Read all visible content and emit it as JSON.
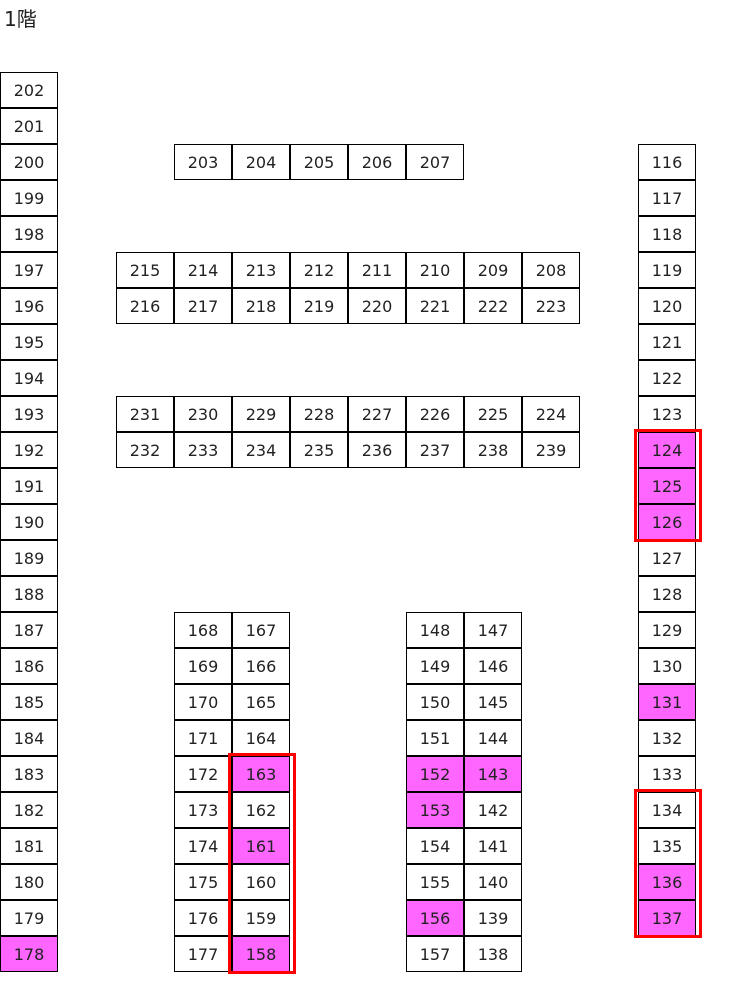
{
  "title": "1階",
  "highlight_color": "#ff66ff",
  "selection_color": "#ff0000",
  "blocks": {
    "left_column": [
      "202",
      "201",
      "200",
      "199",
      "198",
      "197",
      "196",
      "195",
      "194",
      "193",
      "192",
      "191",
      "190",
      "189",
      "188",
      "187",
      "186",
      "185",
      "184",
      "183",
      "182",
      "181",
      "180",
      "179",
      "178"
    ],
    "right_column": [
      "116",
      "117",
      "118",
      "119",
      "120",
      "121",
      "122",
      "123",
      "124",
      "125",
      "126",
      "127",
      "128",
      "129",
      "130",
      "131",
      "132",
      "133",
      "134",
      "135",
      "136",
      "137"
    ],
    "top_row": [
      "203",
      "204",
      "205",
      "206",
      "207"
    ],
    "mid_upper_a": [
      "215",
      "214",
      "213",
      "212",
      "211",
      "210",
      "209",
      "208"
    ],
    "mid_upper_b": [
      "216",
      "217",
      "218",
      "219",
      "220",
      "221",
      "222",
      "223"
    ],
    "mid_lower_a": [
      "231",
      "230",
      "229",
      "228",
      "227",
      "226",
      "225",
      "224"
    ],
    "mid_lower_b": [
      "232",
      "233",
      "234",
      "235",
      "236",
      "237",
      "238",
      "239"
    ],
    "bottom_left_a": [
      "168",
      "169",
      "170",
      "171",
      "172",
      "173",
      "174",
      "175",
      "176",
      "177"
    ],
    "bottom_left_b": [
      "167",
      "166",
      "165",
      "164",
      "163",
      "162",
      "161",
      "160",
      "159",
      "158"
    ],
    "bottom_right_a": [
      "148",
      "149",
      "150",
      "151",
      "152",
      "153",
      "154",
      "155",
      "156",
      "157"
    ],
    "bottom_right_b": [
      "147",
      "146",
      "145",
      "144",
      "143",
      "142",
      "141",
      "140",
      "139",
      "138"
    ]
  },
  "highlighted": [
    "124",
    "125",
    "126",
    "131",
    "136",
    "137",
    "163",
    "161",
    "158",
    "152",
    "143",
    "153",
    "156",
    "178"
  ],
  "selections": [
    [
      "124",
      "126"
    ],
    [
      "134",
      "137"
    ],
    [
      "163",
      "158"
    ]
  ]
}
